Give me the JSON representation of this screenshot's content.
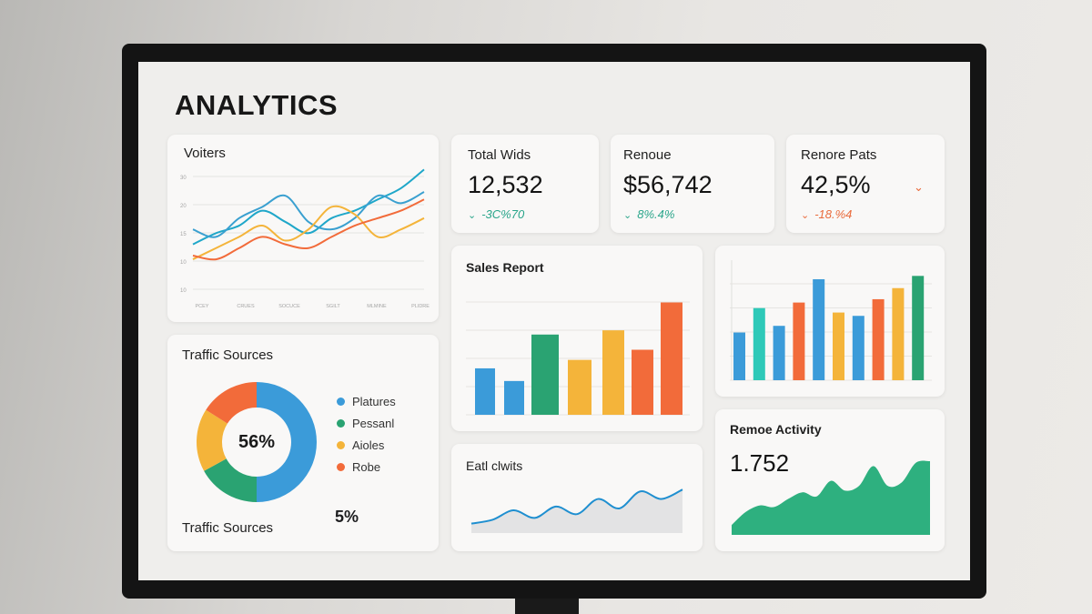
{
  "page": {
    "title": "ANALYTICS"
  },
  "visitors": {
    "label": "Voiters",
    "y_ticks": [
      "30",
      "20",
      "15",
      "10",
      "10"
    ],
    "x_ticks": [
      "PCEY",
      "CRUES",
      "SOCUCE",
      "SGILT",
      "MLMINE",
      "PLIDRE"
    ]
  },
  "kpis": [
    {
      "label": "Total Wids",
      "value": "12,532",
      "change": "-3C%70",
      "direction": "down",
      "color": "#2aa58a"
    },
    {
      "label": "Renoue",
      "value": "$56,742",
      "change": "8%.4%",
      "direction": "down",
      "color": "#2aa58a"
    },
    {
      "label": "Renore Pats",
      "value": "42,5%",
      "change": "-18.%4",
      "direction": "down",
      "color": "#e96a3b"
    }
  ],
  "sales_report": {
    "label": "Sales Report"
  },
  "traffic": {
    "label": "Traffic Sources",
    "footer_label": "Traffic Sources",
    "center_value": "56%",
    "footer_value": "5%",
    "legend": [
      {
        "name": "Platures",
        "color": "#3b9bd9"
      },
      {
        "name": "Pessanl",
        "color": "#2aa372"
      },
      {
        "name": "Aioles",
        "color": "#f4b43a"
      },
      {
        "name": "Robe",
        "color": "#f26b3a"
      }
    ]
  },
  "eatl": {
    "label": "Eatl clwits"
  },
  "remote_activity": {
    "label": "Remoe Activity",
    "value": "1.752"
  },
  "colors": {
    "blue": "#3b9bd9",
    "green": "#2aa372",
    "yellow": "#f4b43a",
    "orange": "#f26b3a",
    "teal": "#2ec9b8",
    "cyan": "#1fa7c9"
  },
  "chart_data": [
    {
      "type": "line",
      "title": "Voiters",
      "x": [
        0,
        1,
        2,
        3,
        4,
        5,
        6,
        7,
        8,
        9,
        10
      ],
      "series": [
        {
          "color": "#1fa7c9",
          "values": [
            12,
            15,
            17,
            21,
            18,
            15,
            19,
            21,
            24,
            27,
            32
          ]
        },
        {
          "color": "#3aa0d0",
          "values": [
            16,
            14,
            19,
            22,
            25,
            18,
            16,
            19,
            25,
            23,
            26
          ]
        },
        {
          "color": "#f4b43a",
          "values": [
            8,
            11,
            14,
            17,
            13,
            16,
            22,
            20,
            14,
            16,
            19
          ]
        },
        {
          "color": "#f26b3a",
          "values": [
            9,
            8,
            11,
            14,
            12,
            11,
            14,
            17,
            19,
            21,
            24
          ]
        }
      ]
    },
    {
      "type": "bar",
      "title": "Sales Report",
      "values": [
        55,
        40,
        95,
        65,
        100,
        77,
        133
      ],
      "colors": [
        "#3b9bd9",
        "#3b9bd9",
        "#2aa372",
        "#f4b43a",
        "#f4b43a",
        "#f26b3a",
        "#f26b3a"
      ]
    },
    {
      "type": "bar",
      "values": [
        43,
        65,
        49,
        70,
        91,
        61,
        58,
        73,
        83,
        94
      ],
      "colors": [
        "#3b9bd9",
        "#2ec9b8",
        "#3b9bd9",
        "#f26b3a",
        "#3b9bd9",
        "#f4b43a",
        "#3b9bd9",
        "#f26b3a",
        "#f4b43a",
        "#2aa372"
      ]
    },
    {
      "type": "pie",
      "title": "Traffic Sources",
      "slices": [
        {
          "name": "Platures",
          "value": 50,
          "color": "#3b9bd9"
        },
        {
          "name": "Pessanl",
          "value": 17,
          "color": "#2aa372"
        },
        {
          "name": "Aioles",
          "value": 17,
          "color": "#f4b43a"
        },
        {
          "name": "Robe",
          "value": 16,
          "color": "#f26b3a"
        }
      ]
    },
    {
      "type": "area",
      "title": "Eatl clwits",
      "values": [
        5,
        7,
        12,
        8,
        14,
        10,
        18,
        13,
        22,
        18,
        23
      ],
      "color": "#1f8fd0"
    },
    {
      "type": "area",
      "title": "Remoe Activity",
      "values": [
        12,
        28,
        36,
        34,
        44,
        52,
        47,
        66,
        54,
        60,
        84,
        60,
        64,
        88,
        90
      ],
      "color": "#2eb07f"
    }
  ]
}
